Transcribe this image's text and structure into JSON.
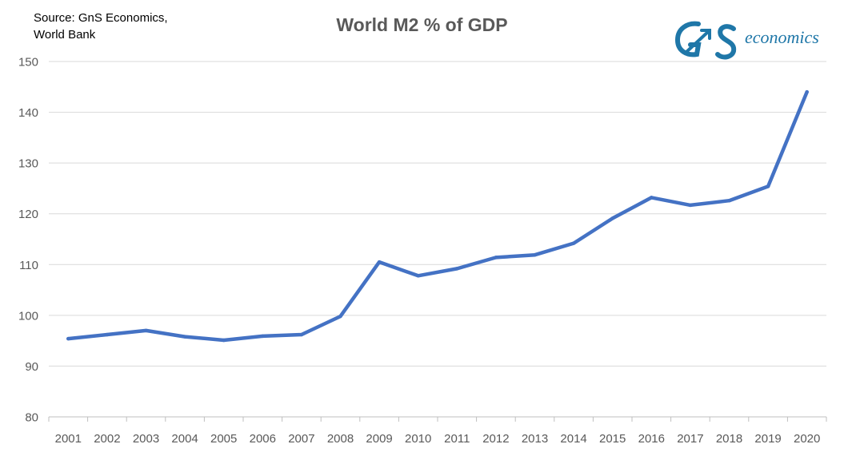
{
  "source_lines": [
    "Source: GnS Economics,",
    "World Bank"
  ],
  "logo": {
    "mark": "GnS",
    "word": "economics",
    "color": "#1f77a8"
  },
  "chart_data": {
    "type": "line",
    "title": "World M2 % of GDP",
    "xlabel": "",
    "ylabel": "",
    "categories": [
      "2001",
      "2002",
      "2003",
      "2004",
      "2005",
      "2006",
      "2007",
      "2008",
      "2009",
      "2010",
      "2011",
      "2012",
      "2013",
      "2014",
      "2015",
      "2016",
      "2017",
      "2018",
      "2019",
      "2020"
    ],
    "series": [
      {
        "color": "#4472c4",
        "values": [
          95.4,
          96.2,
          97.0,
          95.8,
          95.1,
          95.9,
          96.2,
          99.8,
          110.5,
          107.8,
          109.2,
          111.4,
          111.9,
          114.2,
          119.1,
          123.2,
          121.7,
          122.6,
          125.4,
          144.0
        ]
      }
    ],
    "ylim": [
      80,
      150
    ],
    "yticks": [
      80,
      90,
      100,
      110,
      120,
      130,
      140,
      150
    ],
    "grid": true,
    "legend": "none"
  }
}
